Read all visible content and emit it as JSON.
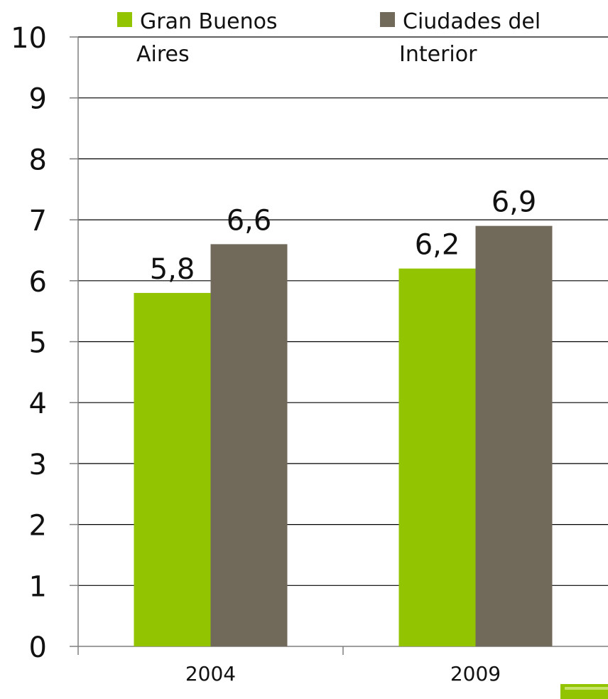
{
  "chart_data": {
    "type": "bar",
    "categories": [
      "2004",
      "2009"
    ],
    "series": [
      {
        "name": "Gran Buenos Aires",
        "legend_lines": [
          "Gran Buenos",
          "Aires"
        ],
        "color": "#93c401",
        "values": [
          5.8,
          6.2
        ],
        "labels": [
          "5,8",
          "6,2"
        ]
      },
      {
        "name": "Ciudades del Interior",
        "legend_lines": [
          "Ciudades del",
          "Interior"
        ],
        "color": "#716a5b",
        "values": [
          6.6,
          6.9
        ],
        "labels": [
          "6,6",
          "6,9"
        ]
      }
    ],
    "ylim": [
      0,
      10
    ],
    "yticks": [
      "0",
      "1",
      "2",
      "3",
      "4",
      "5",
      "6",
      "7",
      "8",
      "9",
      "10"
    ],
    "grid": true,
    "legend_position": "top",
    "colors": {
      "gridline": "#000000",
      "axis": "#7f7f7f",
      "text": "#111111",
      "corner_mark": "#93c401"
    }
  }
}
